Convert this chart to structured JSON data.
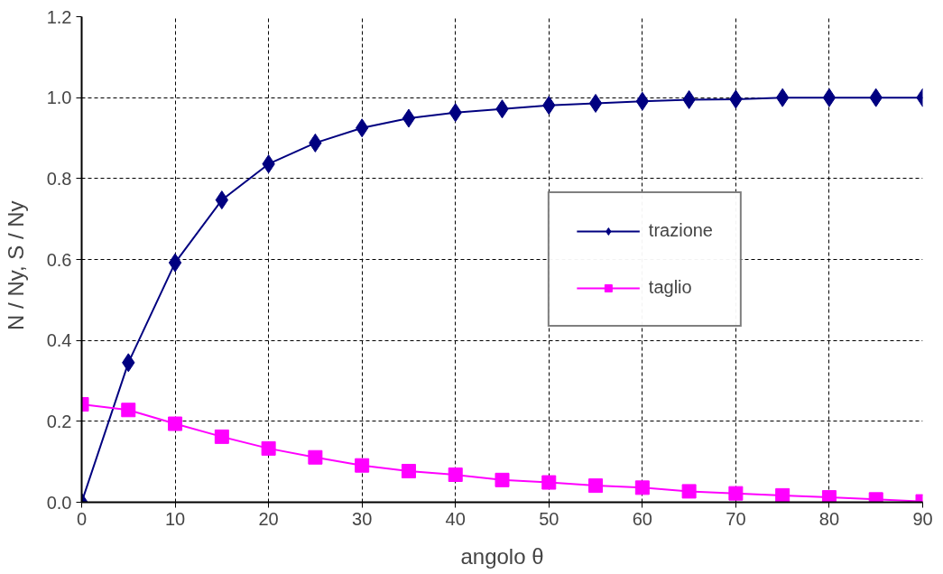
{
  "chart_data": {
    "type": "line",
    "xlabel": "angolo θ",
    "ylabel": "N / Ny,   S / Ny",
    "x": [
      0,
      5,
      10,
      15,
      20,
      25,
      30,
      35,
      40,
      45,
      50,
      55,
      60,
      65,
      70,
      75,
      80,
      85,
      90
    ],
    "series": [
      {
        "name": "trazione",
        "color": "#000080",
        "marker": "diamond",
        "values": [
          0,
          0.345,
          0.592,
          0.747,
          0.836,
          0.888,
          0.925,
          0.949,
          0.963,
          0.972,
          0.981,
          0.986,
          0.991,
          0.995,
          0.996,
          1,
          1,
          1,
          1
        ]
      },
      {
        "name": "taglio",
        "color": "#ff00ff",
        "marker": "square",
        "values": [
          0.242,
          0.228,
          0.194,
          0.162,
          0.133,
          0.111,
          0.091,
          0.077,
          0.068,
          0.055,
          0.049,
          0.041,
          0.036,
          0.027,
          0.022,
          0.017,
          0.012,
          0.007,
          0.002
        ]
      }
    ],
    "xlim": [
      0,
      90
    ],
    "xticks": [
      0,
      10,
      20,
      30,
      40,
      50,
      60,
      70,
      80,
      90
    ],
    "ylim": [
      0,
      1.2
    ],
    "yticks": [
      {
        "value": 0,
        "label": "0.0"
      },
      {
        "value": 0.2,
        "label": "0.2"
      },
      {
        "value": 0.4,
        "label": "0.4"
      },
      {
        "value": 0.6,
        "label": "0.6"
      },
      {
        "value": 0.8,
        "label": "0.8"
      },
      {
        "value": 1,
        "label": "1.0"
      },
      {
        "value": 1.2,
        "label": "1.2"
      }
    ],
    "grid": true,
    "legend": "right",
    "line_style": "solid"
  }
}
